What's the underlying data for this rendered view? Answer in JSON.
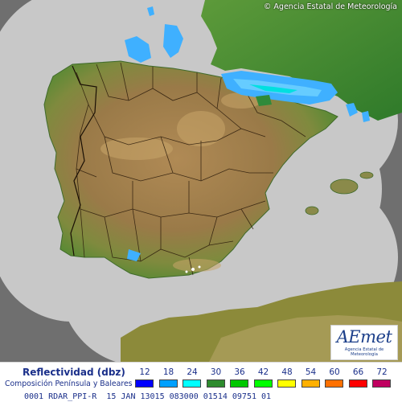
{
  "header": {
    "copyright": "© Agencia Estatal de Meteorología"
  },
  "logo": {
    "word": "AEmet",
    "subtitle": "Agencia Estatal de Meteorología"
  },
  "legend": {
    "title": "Reflectividad (dbz)",
    "subtitle": "Composición Península y Baleares",
    "levels": [
      {
        "value": "12",
        "color": "#0000ff"
      },
      {
        "value": "18",
        "color": "#00a0ff"
      },
      {
        "value": "24",
        "color": "#00ffff"
      },
      {
        "value": "30",
        "color": "#2e8b2e"
      },
      {
        "value": "36",
        "color": "#00c800"
      },
      {
        "value": "42",
        "color": "#00ff00"
      },
      {
        "value": "48",
        "color": "#ffff00"
      },
      {
        "value": "54",
        "color": "#ffb000"
      },
      {
        "value": "60",
        "color": "#ff7000"
      },
      {
        "value": "66",
        "color": "#ff0000"
      },
      {
        "value": "72",
        "color": "#c00060"
      }
    ]
  },
  "status_line": "0001 RDAR_PPI-R  15 JAN 13015 083000 01514 09751 01",
  "map": {
    "sea_color": "#ffffff",
    "outside_coverage_color": "#6f6f6f",
    "radar_coverage_color": "#c8c8c8",
    "land_color": "#a07a4a",
    "echo_color": "#3fb0ff",
    "boundary_color": "#2a1a0a"
  }
}
